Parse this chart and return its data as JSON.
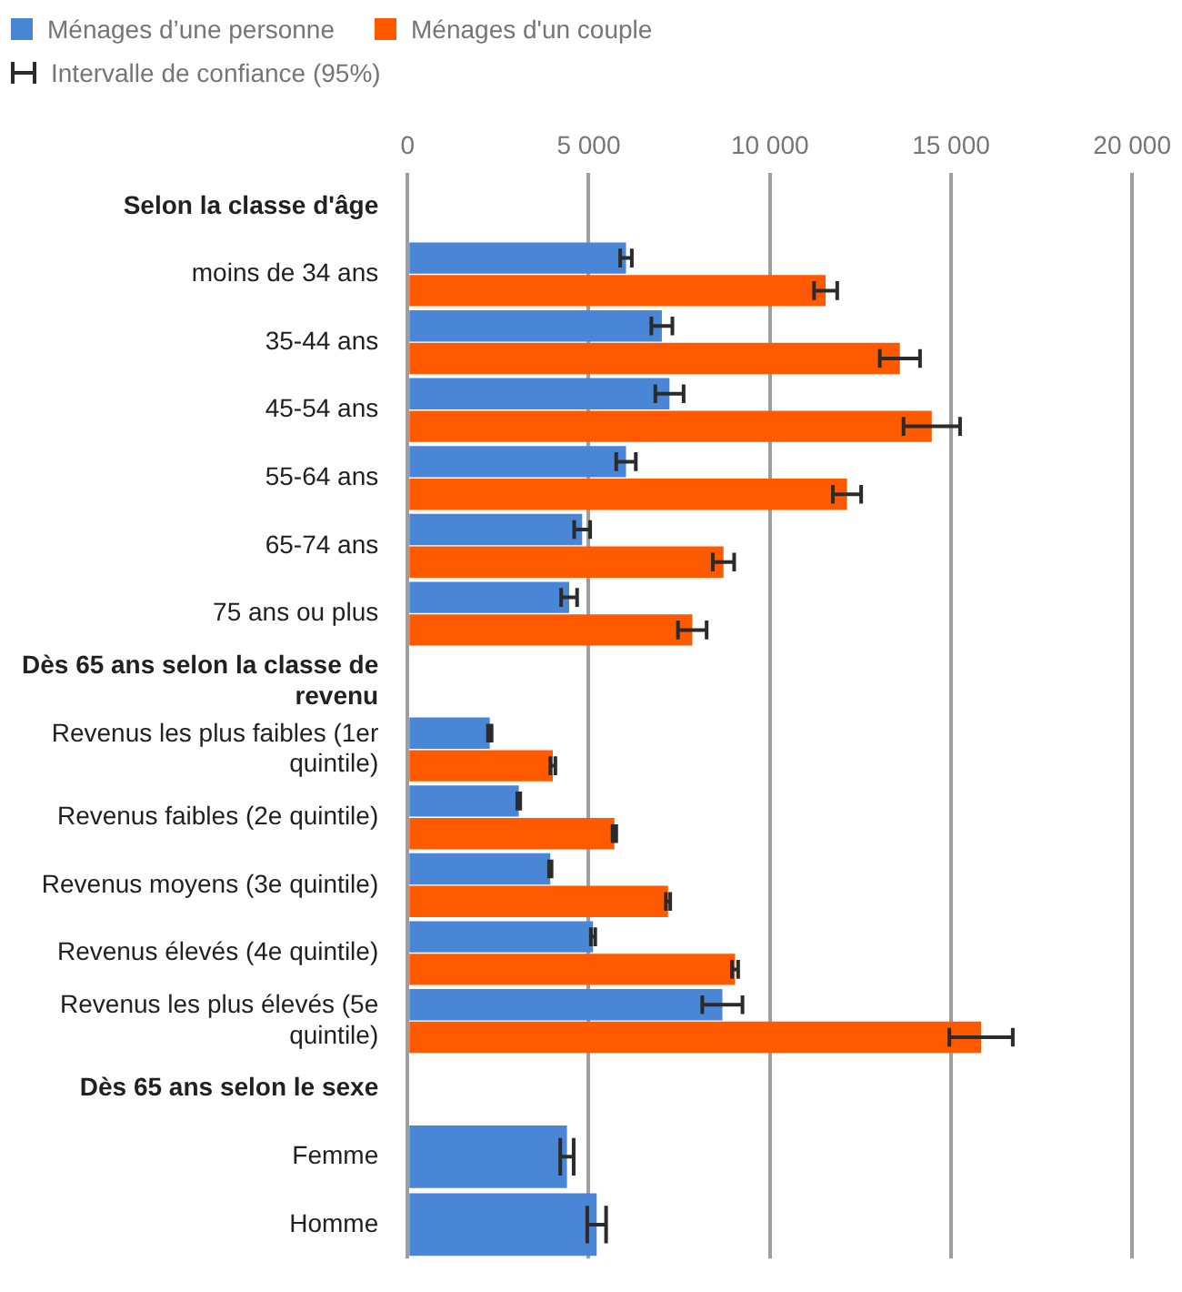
{
  "chart_data": {
    "type": "bar",
    "orientation": "horizontal",
    "legend": "top left",
    "grid": "x",
    "annotations": [
      "Intervalle de confiance (95%)"
    ],
    "categories": [
      "Selon la classe d'âge",
      "moins de 34 ans",
      "35-44 ans",
      "45-54 ans",
      "55-64 ans",
      "65-74 ans",
      "75 ans ou plus",
      "Dès 65 ans selon la classe de revenu",
      "Revenus les plus faibles (1er quintile)",
      "Revenus faibles (2e quintile)",
      "Revenus moyens (3e quintile)",
      "Revenus élevés (4e quintile)",
      "Revenus les plus élevés (5e quintile)",
      "Dès 65 ans selon le sexe",
      "Femme",
      "Homme"
    ],
    "xlim": [
      0,
      20000
    ],
    "xticks": [
      0,
      {
        "value": 5000,
        "label": "5 000"
      },
      {
        "value": 10000,
        "label": "10 000"
      },
      {
        "value": 15000,
        "label": "15 000"
      },
      {
        "value": 20000,
        "label": "20 000"
      }
    ],
    "series": [
      {
        "name": "Ménages d’une personne",
        "color": "#4a86d6",
        "values": [
          null,
          6030,
          7020,
          7230,
          6030,
          4820,
          4460,
          null,
          2270,
          3070,
          3940,
          5120,
          8690,
          null,
          4400,
          5220
        ],
        "errors": [
          null,
          160,
          290,
          390,
          270,
          220,
          220,
          null,
          50,
          40,
          35,
          60,
          555,
          null,
          185,
          260
        ]
      },
      {
        "name": "Ménages d'un couple",
        "color": "#ff5a00",
        "values": [
          null,
          11540,
          13590,
          14470,
          12130,
          8720,
          7860,
          null,
          4010,
          5710,
          7190,
          9040,
          15830,
          null,
          null,
          null
        ],
        "errors": [
          null,
          320,
          555,
          780,
          390,
          295,
          395,
          null,
          70,
          50,
          60,
          85,
          875,
          null,
          null,
          null
        ]
      }
    ]
  }
}
